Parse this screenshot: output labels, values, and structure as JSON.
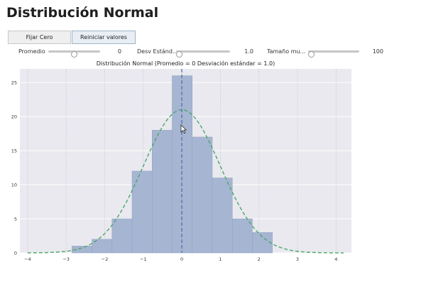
{
  "title": "Distribución Normal",
  "buttons": {
    "fix_zero": "Fijar Cero",
    "reset": "Reiniciar valores"
  },
  "sliders": [
    {
      "label": "Promedio",
      "value": "0",
      "level": 0.5
    },
    {
      "label": "Desv Estánd...",
      "value": "1.0",
      "level": 0.0
    },
    {
      "label": "Tamaño mu...",
      "value": "100",
      "level": 0.0
    }
  ],
  "colors": {
    "bar_fill": "#a6b5d1",
    "bar_edge": "#8fa0c2",
    "curve": "#4aa867",
    "mean_line": "#4c72b0",
    "plot_bg": "#e9e9ef",
    "grid": "#ffffff"
  },
  "chart_data": {
    "type": "bar",
    "title": "Distribución Normal (Promedio = 0 Desviación estándar = 1.0)",
    "bin_edges": [
      -2.85,
      -2.33,
      -1.81,
      -1.29,
      -0.77,
      -0.25,
      0.27,
      0.79,
      1.31,
      1.83,
      2.35
    ],
    "counts": [
      1,
      2,
      5,
      12,
      18,
      26,
      17,
      11,
      5,
      3
    ],
    "normal_curve": {
      "mean": 0,
      "std": 1.0,
      "peak": 21
    },
    "mean_line": 0,
    "xlim": [
      -4.2,
      4.4
    ],
    "ylim": [
      0,
      27
    ],
    "xticks": [
      -4,
      -3,
      -2,
      -1,
      0,
      1,
      2,
      3,
      4
    ],
    "yticks": [
      0,
      5,
      10,
      15,
      20,
      25
    ],
    "grid": true
  }
}
